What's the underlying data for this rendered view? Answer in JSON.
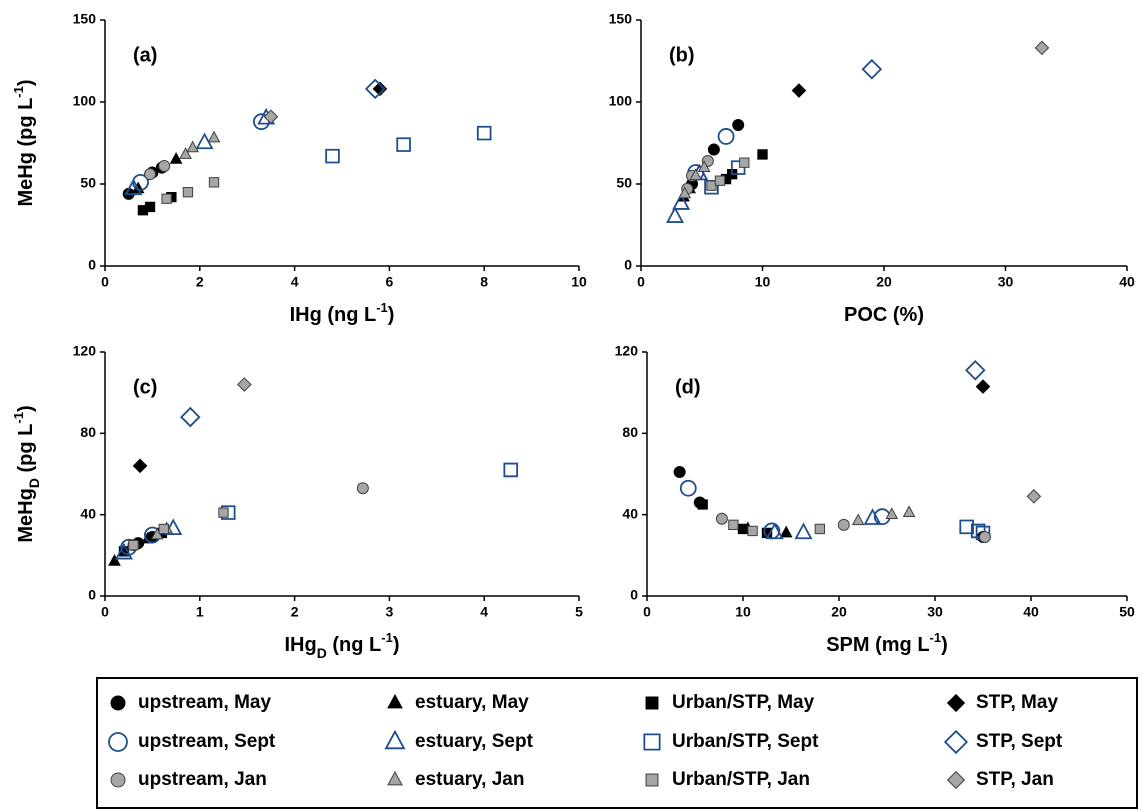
{
  "chart_data": [
    {
      "type": "scatter",
      "label": "(a)",
      "xlabel": [
        {
          "text": "IHg (ng L"
        },
        {
          "sup": "-1"
        },
        {
          "text": ")"
        }
      ],
      "ylabel": [
        {
          "text": "MeHg (pg L"
        },
        {
          "sup": "-1"
        },
        {
          "text": ")"
        }
      ],
      "xlim": [
        0,
        10
      ],
      "xticks": [
        0,
        2,
        4,
        6,
        8,
        10
      ],
      "ylim": [
        0,
        150
      ],
      "yticks": [
        0,
        50,
        100,
        150
      ],
      "series": [
        {
          "x": [
            0.5,
            1.0,
            1.2
          ],
          "values": [
            44,
            57,
            60
          ]
        },
        {
          "x": [
            0.7,
            1.5
          ],
          "values": [
            47,
            65
          ]
        },
        {
          "x": [
            0.8,
            0.95,
            1.4
          ],
          "values": [
            34,
            36,
            42
          ]
        },
        {
          "x": [
            5.8
          ],
          "values": [
            108
          ]
        },
        {
          "x": [
            0.75,
            3.3
          ],
          "values": [
            51,
            88
          ]
        },
        {
          "x": [
            0.6,
            2.1,
            3.4
          ],
          "values": [
            47,
            75,
            90
          ]
        },
        {
          "x": [
            4.8,
            6.3,
            8
          ],
          "values": [
            67,
            74,
            81
          ]
        },
        {
          "x": [
            5.7
          ],
          "values": [
            108
          ]
        },
        {
          "x": [
            0.95,
            1.25
          ],
          "values": [
            56,
            61
          ]
        },
        {
          "x": [
            1.7,
            1.85,
            2.3
          ],
          "values": [
            68,
            72,
            78
          ]
        },
        {
          "x": [
            1.3,
            1.75,
            2.3
          ],
          "values": [
            41,
            45,
            51
          ]
        },
        {
          "x": [
            3.5
          ],
          "values": [
            91
          ]
        }
      ]
    },
    {
      "type": "scatter",
      "label": "(b)",
      "xlabel": [
        {
          "text": "POC (%)"
        }
      ],
      "xlim": [
        0,
        40
      ],
      "xticks": [
        0,
        10,
        20,
        30,
        40
      ],
      "ylim": [
        0,
        150
      ],
      "yticks": [
        0,
        50,
        100,
        150
      ],
      "series": [
        {
          "x": [
            4.2,
            6,
            8
          ],
          "values": [
            50,
            71,
            86
          ]
        },
        {
          "x": [
            3.5,
            4
          ],
          "values": [
            42,
            47
          ]
        },
        {
          "x": [
            7,
            7.5,
            10
          ],
          "values": [
            53,
            56,
            68
          ]
        },
        {
          "x": [
            13
          ],
          "values": [
            107
          ]
        },
        {
          "x": [
            4.5,
            7
          ],
          "values": [
            57,
            79
          ]
        },
        {
          "x": [
            2.8,
            3.3,
            4.8
          ],
          "values": [
            30,
            38,
            56
          ]
        },
        {
          "x": [
            5.8,
            8
          ],
          "values": [
            48,
            60
          ]
        },
        {
          "x": [
            19
          ],
          "values": [
            120
          ]
        },
        {
          "x": [
            3.8,
            4.2,
            5.5
          ],
          "values": [
            47,
            55,
            64
          ]
        },
        {
          "x": [
            3.6,
            4.5,
            5.2
          ],
          "values": [
            44,
            55,
            60
          ]
        },
        {
          "x": [
            5.8,
            6.5,
            8.5
          ],
          "values": [
            49,
            52,
            63
          ]
        },
        {
          "x": [
            33
          ],
          "values": [
            133
          ]
        }
      ]
    },
    {
      "type": "scatter",
      "label": "(c)",
      "xlabel": [
        {
          "text": "IHg"
        },
        {
          "sub": "D"
        },
        {
          "text": " (ng L"
        },
        {
          "sup": "-1"
        },
        {
          "text": ")"
        }
      ],
      "ylabel": [
        {
          "text": "MeHg"
        },
        {
          "sub": "D"
        },
        {
          "text": " (pg L"
        },
        {
          "sup": "-1"
        },
        {
          "text": ")"
        }
      ],
      "xlim": [
        0,
        5
      ],
      "xticks": [
        0,
        1,
        2,
        3,
        4,
        5
      ],
      "ylim": [
        0,
        120
      ],
      "yticks": [
        0,
        40,
        80,
        120
      ],
      "series": [
        {
          "x": [
            0.35,
            0.5
          ],
          "values": [
            26,
            29
          ]
        },
        {
          "x": [
            0.1,
            0.45
          ],
          "values": [
            17,
            28
          ]
        },
        {
          "x": [
            0.2,
            0.6
          ],
          "values": [
            22,
            31
          ]
        },
        {
          "x": [
            0.37
          ],
          "values": [
            64
          ]
        },
        {
          "x": [
            0.25,
            0.5
          ],
          "values": [
            24,
            30
          ]
        },
        {
          "x": [
            0.2,
            0.72
          ],
          "values": [
            21,
            33
          ]
        },
        {
          "x": [
            1.3,
            4.28
          ],
          "values": [
            41,
            62
          ]
        },
        {
          "x": [
            0.9
          ],
          "values": [
            88
          ]
        },
        {
          "x": [
            0.3,
            2.72
          ],
          "values": [
            25,
            53
          ]
        },
        {
          "x": [
            0.55,
            0.65
          ],
          "values": [
            30,
            33
          ]
        },
        {
          "x": [
            0.3,
            0.62,
            1.25
          ],
          "values": [
            25,
            33,
            41
          ]
        },
        {
          "x": [
            1.47
          ],
          "values": [
            104
          ]
        }
      ]
    },
    {
      "type": "scatter",
      "label": "(d)",
      "xlabel": [
        {
          "text": "SPM (mg L"
        },
        {
          "sup": "-1"
        },
        {
          "text": ")"
        }
      ],
      "xlim": [
        0,
        50
      ],
      "xticks": [
        0,
        10,
        20,
        30,
        40,
        50
      ],
      "ylim": [
        0,
        120
      ],
      "yticks": [
        0,
        40,
        80,
        120
      ],
      "series": [
        {
          "x": [
            3.4,
            5.5,
            35
          ],
          "values": [
            61,
            46,
            29
          ]
        },
        {
          "x": [
            10.5,
            14.5
          ],
          "values": [
            33,
            31
          ]
        },
        {
          "x": [
            5.8,
            10,
            12.5
          ],
          "values": [
            45,
            33,
            31
          ]
        },
        {
          "x": [
            35
          ],
          "values": [
            103
          ]
        },
        {
          "x": [
            4.3,
            13,
            24.5
          ],
          "values": [
            53,
            32,
            39
          ]
        },
        {
          "x": [
            13.3,
            16.3,
            23.5
          ],
          "values": [
            31,
            31,
            38
          ]
        },
        {
          "x": [
            33.3,
            34.5,
            35
          ],
          "values": [
            34,
            32,
            31
          ]
        },
        {
          "x": [
            34.2
          ],
          "values": [
            111
          ]
        },
        {
          "x": [
            7.8,
            20.5,
            35.2
          ],
          "values": [
            38,
            35,
            29
          ]
        },
        {
          "x": [
            22,
            25.5,
            27.3
          ],
          "values": [
            37,
            40,
            41
          ]
        },
        {
          "x": [
            9,
            11,
            18
          ],
          "values": [
            35,
            32,
            33
          ]
        },
        {
          "x": [
            40.3
          ],
          "values": [
            49
          ]
        }
      ]
    }
  ],
  "legend": [
    {
      "name": "upstream, May",
      "marker": "circle",
      "fill": "#000000",
      "stroke": "#000000"
    },
    {
      "name": "estuary, May",
      "marker": "triangle",
      "fill": "#000000",
      "stroke": "#000000"
    },
    {
      "name": "Urban/STP, May",
      "marker": "square",
      "fill": "#000000",
      "stroke": "#000000"
    },
    {
      "name": "STP, May",
      "marker": "diamond",
      "fill": "#000000",
      "stroke": "#000000"
    },
    {
      "name": "upstream, Sept",
      "marker": "circle",
      "fill": "none",
      "stroke": "#1f4e8c"
    },
    {
      "name": "estuary, Sept",
      "marker": "triangle",
      "fill": "none",
      "stroke": "#1f4e8c"
    },
    {
      "name": "Urban/STP, Sept",
      "marker": "square",
      "fill": "none",
      "stroke": "#1f4e8c"
    },
    {
      "name": "STP, Sept",
      "marker": "diamond",
      "fill": "none",
      "stroke": "#1f4e8c"
    },
    {
      "name": "upstream, Jan",
      "marker": "circle",
      "fill": "#a6a6a6",
      "stroke": "#404040"
    },
    {
      "name": "estuary, Jan",
      "marker": "triangle",
      "fill": "#a6a6a6",
      "stroke": "#404040"
    },
    {
      "name": "Urban/STP, Jan",
      "marker": "square",
      "fill": "#a6a6a6",
      "stroke": "#404040"
    },
    {
      "name": "STP, Jan",
      "marker": "diamond",
      "fill": "#a6a6a6",
      "stroke": "#404040"
    }
  ]
}
